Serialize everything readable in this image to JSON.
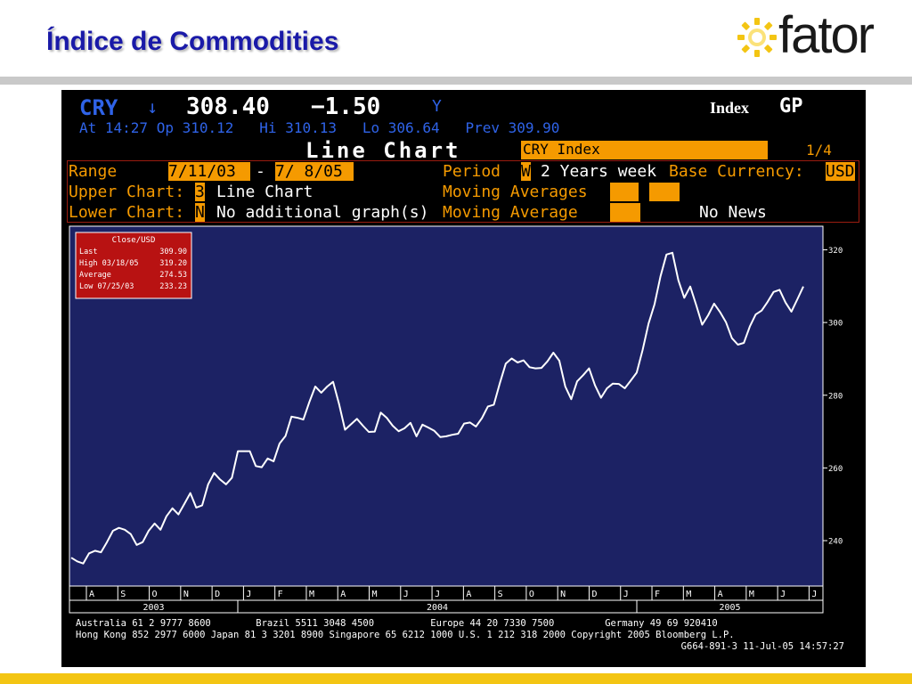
{
  "slide": {
    "title": "Índice de Commodities",
    "logo_text": "fator",
    "colors": {
      "title": "#1a1aa8",
      "accent_yellow": "#f3c513",
      "rule_gray": "#c9c9c9"
    }
  },
  "terminal": {
    "ticker": "CRY",
    "arrow": "↓",
    "price": "308.40",
    "change": "−1.50",
    "flag": "Y",
    "index_label": "Index",
    "gp": "GP",
    "quote_line": "At 14:27 Op 310.12   Hi 310.13   Lo 306.64   Prev 309.90",
    "chart_title": "Line Chart",
    "security": "CRY Index",
    "page": "1/4",
    "range_label": "Range",
    "range_from": "7/11/03",
    "range_dash": "-",
    "range_to": "7/ 8/05",
    "period_label": "Period",
    "period_code": "W",
    "period_text": "2 Years week",
    "base_currency_label": "Base Currency:",
    "base_currency": "USD",
    "upper_chart_label": "Upper Chart:",
    "upper_chart_code": "3",
    "upper_chart_text": "Line Chart",
    "moving_averages_label": "Moving Averages",
    "lower_chart_label": "Lower Chart:",
    "lower_chart_code": "N",
    "lower_chart_text": "No additional graph(s)",
    "moving_average_label": "Moving Average",
    "news_text": "No News",
    "legend": {
      "title": "Close/USD",
      "rows": [
        {
          "label": "Last",
          "value": "309.90"
        },
        {
          "label": "High  03/18/05",
          "value": "319.20"
        },
        {
          "label": "Average",
          "value": "274.53"
        },
        {
          "label": "Low  07/25/03",
          "value": "233.23"
        }
      ]
    },
    "footer_line1": "Australia 61 2 9777 8600        Brazil 5511 3048 4500          Europe 44 20 7330 7500         Germany 49 69 920410",
    "footer_line2": "Hong Kong 852 2977 6000 Japan 81 3 3201 8900 Singapore 65 6212 1000 U.S. 1 212 318 2000 Copyright 2005 Bloomberg L.P.",
    "footer_line3": "G664-891-3 11-Jul-05 14:57:27",
    "colors": {
      "background": "#000000",
      "chart_bg": "#1c2264",
      "blue_text": "#2f63e8",
      "orange": "#f59a00",
      "frame_red": "#9b1c10",
      "line": "#ffffff",
      "legend_bg": "#b81212"
    }
  },
  "chart_data": {
    "type": "line",
    "title": "Close/USD",
    "xlabel": "",
    "ylabel": "",
    "ylim": [
      228,
      326
    ],
    "yticks": [
      240,
      260,
      280,
      300,
      320
    ],
    "month_labels": [
      "A",
      "S",
      "O",
      "N",
      "D",
      "J",
      "F",
      "M",
      "A",
      "M",
      "J",
      "J",
      "A",
      "S",
      "O",
      "N",
      "D",
      "J",
      "F",
      "M",
      "A",
      "M",
      "J",
      "J"
    ],
    "year_labels": [
      "2003",
      "2004",
      "2005"
    ],
    "grid": false,
    "legend_position": "top-left",
    "series": [
      {
        "name": "Close/USD",
        "values": [
          235.3,
          234.3,
          233.7,
          236.5,
          237.2,
          236.8,
          239.6,
          242.7,
          243.5,
          243.0,
          241.8,
          238.8,
          239.6,
          242.7,
          244.7,
          243.0,
          246.7,
          248.9,
          247.2,
          250.1,
          253.1,
          249.1,
          249.7,
          255.5,
          258.6,
          256.8,
          255.5,
          257.3,
          264.6,
          264.6,
          264.6,
          260.5,
          260.2,
          262.6,
          261.8,
          266.7,
          268.8,
          274.1,
          273.8,
          273.3,
          278.1,
          282.4,
          280.7,
          282.4,
          283.7,
          277.6,
          270.5,
          272.0,
          273.5,
          271.6,
          269.9,
          270.0,
          275.2,
          273.8,
          271.6,
          270.1,
          270.9,
          272.4,
          268.7,
          271.9,
          271.1,
          270.2,
          268.5,
          268.7,
          269.1,
          269.4,
          272.2,
          272.5,
          271.4,
          273.7,
          276.9,
          277.4,
          283.3,
          288.7,
          290.1,
          289.0,
          289.6,
          287.7,
          287.4,
          287.5,
          289.3,
          291.7,
          289.5,
          282.4,
          278.9,
          283.8,
          285.5,
          287.4,
          282.7,
          279.3,
          281.9,
          283.2,
          283.1,
          281.9,
          284.0,
          286.2,
          292.5,
          299.7,
          305.0,
          312.7,
          318.7,
          319.2,
          311.6,
          306.8,
          309.9,
          304.8,
          299.4,
          302.0,
          305.2,
          302.9,
          300.1,
          295.7,
          293.9,
          294.4,
          298.9,
          302.2,
          303.3,
          305.7,
          308.4,
          309.0,
          305.5,
          303.0,
          306.4,
          309.9
        ]
      }
    ]
  }
}
